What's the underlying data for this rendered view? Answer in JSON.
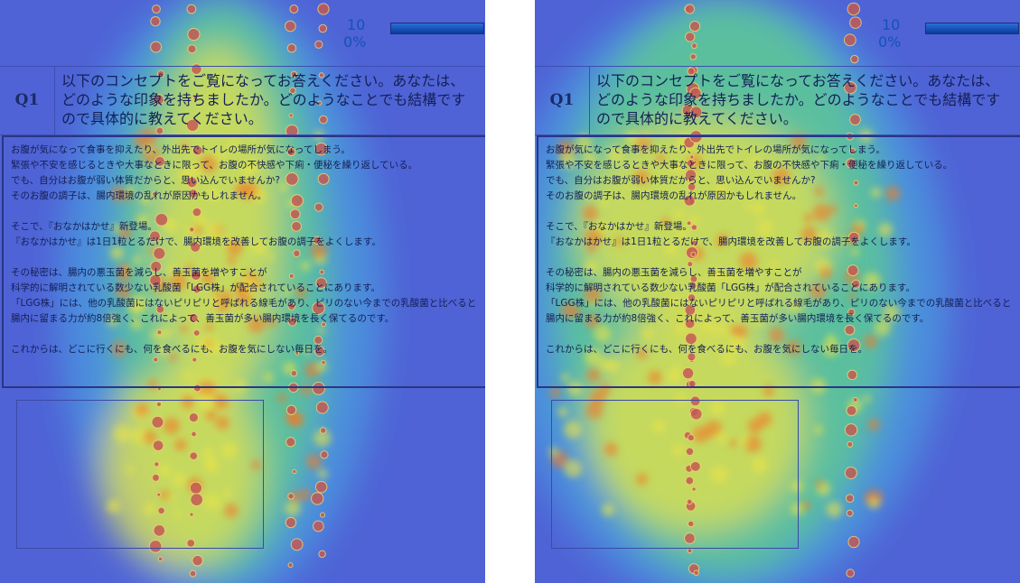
{
  "panels": [
    {
      "progress": {
        "count": "10",
        "percent": "0%"
      },
      "question": {
        "label": "Q1",
        "text": "以下のコンセプトをご覧になってお答えください。あなたは、どのような印象を持ちましたか。どのようなことでも結構ですので具体的に教えてください。"
      },
      "concept": [
        [
          "お腹が気になって食事を抑えたり、外出先でトイレの場所が気になってしまう。",
          "緊張や不安を感じるときや大事なときに限って、お腹の不快感や下痢・便秘を繰り返している。",
          "でも、自分はお腹が弱い体質だからと、思い込んでいませんか?",
          "そのお腹の調子は、腸内環境の乱れが原因かもしれません。"
        ],
        [
          "そこで、『おなかはかせ』新登場。",
          "『おなかはかせ』は1日1粒とるだけで、腸内環境を改善してお腹の調子をよくします。"
        ],
        [
          "その秘密は、腸内の悪玉菌を減らし、善玉菌を増やすことが",
          "科学的に解明されている数少ない乳酸菌「LGG株」が配合されていることにあります。",
          "「LGG株」には、他の乳酸菌にはないピリピリと呼ばれる線毛があり、ピリのない今までの乳酸菌と比べると",
          "腸内に留まる力が約8倍強く、これによって、善玉菌が多い腸内環境を長く保てるのです。"
        ],
        [
          "これからは、どこに行くにも、何を食べるにも、お腹を気にしない毎日を。"
        ]
      ]
    },
    {
      "progress": {
        "count": "10",
        "percent": "0%"
      },
      "question": {
        "label": "Q1",
        "text": "以下のコンセプトをご覧になってお答えください。あなたは、どのような印象を持ちましたか。どのようなことでも結構ですので具体的に教えてください。"
      },
      "concept": [
        [
          "お腹が気になって食事を抑えたり、外出先でトイレの場所が気になってしまう。",
          "緊張や不安を感じるときや大事なときに限って、お腹の不快感や下痢・便秘を繰り返している。",
          "でも、自分はお腹が弱い体質だからと、思い込んでいませんか?",
          "そのお腹の調子は、腸内環境の乱れが原因かもしれません。"
        ],
        [
          "そこで、『おなかはかせ』新登場。",
          "『おなかはかせ』は1日1粒とるだけで、腸内環境を改善してお腹の調子をよくします。"
        ],
        [
          "その秘密は、腸内の悪玉菌を減らし、善玉菌を増やすことが",
          "科学的に解明されている数少ない乳酸菌「LGG株」が配合されていることにあります。",
          "「LGG株」には、他の乳酸菌にはないピリピリと呼ばれる線毛があり、ピリのない今までの乳酸菌と比べると",
          "腸内に留まる力が約8倍強く、これによって、善玉菌が多い腸内環境を長く保てるのです。"
        ],
        [
          "これからは、どこに行くにも、何を食べるにも、お腹を気にしない毎日を。"
        ]
      ]
    }
  ]
}
